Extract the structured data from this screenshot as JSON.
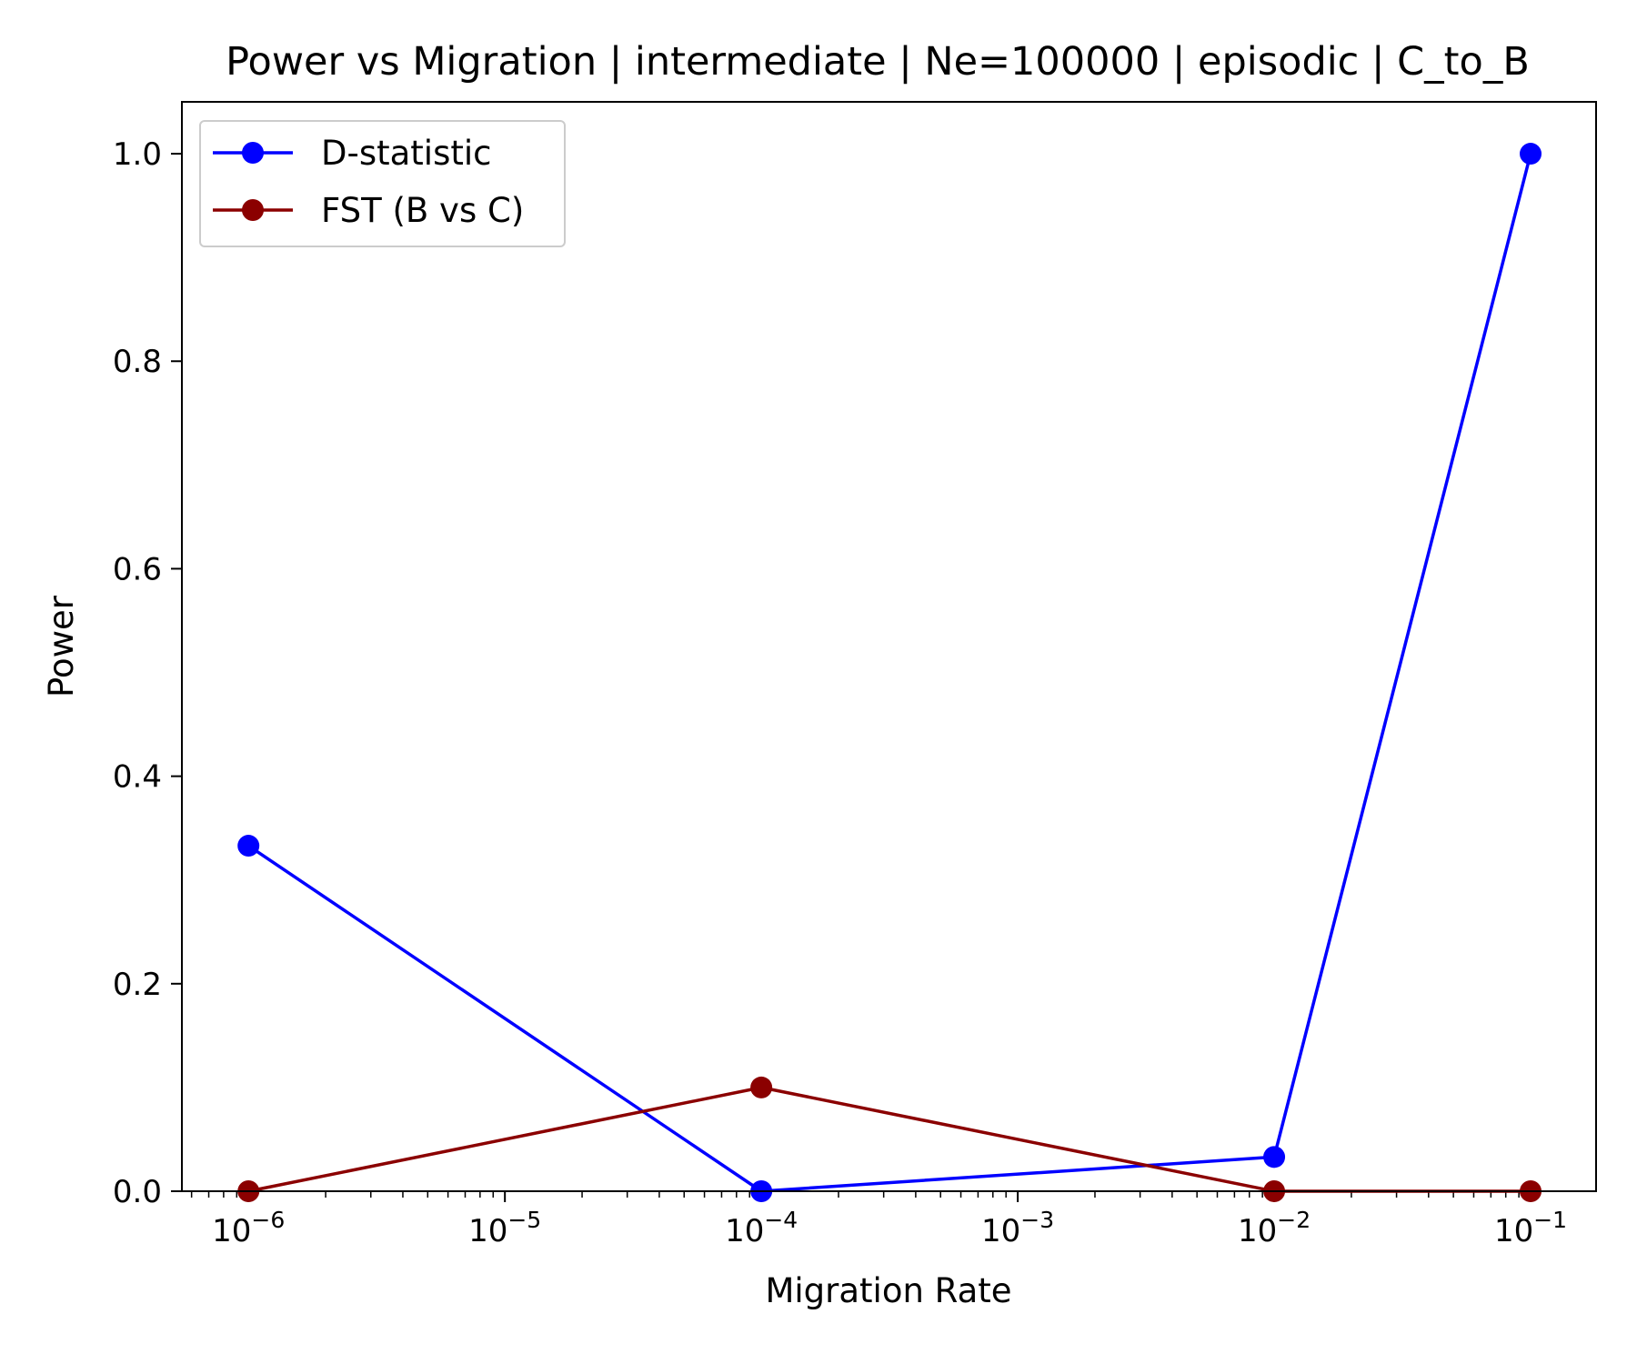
{
  "chart_data": {
    "type": "line",
    "title": "Power vs Migration | intermediate | Ne=100000 | episodic | C_to_B",
    "xlabel": "Migration Rate",
    "ylabel": "Power",
    "xscale": "log",
    "xlim": [
      5.5e-07,
      0.18
    ],
    "ylim": [
      0,
      1.05
    ],
    "grid": false,
    "legend_position": "top-left",
    "x_ticks": [
      {
        "base": "10",
        "exp": "−6"
      },
      {
        "base": "10",
        "exp": "−5"
      },
      {
        "base": "10",
        "exp": "−4"
      },
      {
        "base": "10",
        "exp": "−3"
      },
      {
        "base": "10",
        "exp": "−2"
      },
      {
        "base": "10",
        "exp": "−1"
      }
    ],
    "y_ticks": [
      "0.0",
      "0.2",
      "0.4",
      "0.6",
      "0.8",
      "1.0"
    ],
    "x": [
      1e-06,
      0.0001,
      0.01,
      0.1
    ],
    "series": [
      {
        "name": "D-statistic",
        "color": "#0000ff",
        "marker": "circle",
        "values": [
          0.333,
          0.0,
          0.033,
          1.0
        ]
      },
      {
        "name": "FST (B vs C)",
        "color": "#8b0000",
        "marker": "circle",
        "values": [
          0.0,
          0.1,
          0.0,
          0.0
        ]
      }
    ]
  }
}
